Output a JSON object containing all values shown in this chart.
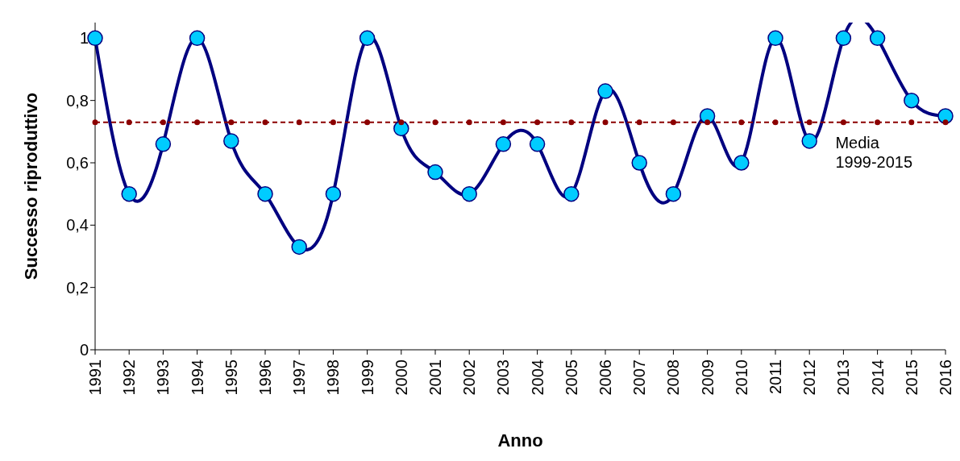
{
  "chart_data": {
    "type": "line",
    "xlabel": "Anno",
    "ylabel": "Successo riproduttivo",
    "categories": [
      "1991",
      "1992",
      "1993",
      "1994",
      "1995",
      "1996",
      "1997",
      "1998",
      "1999",
      "2000",
      "2001",
      "2002",
      "2003",
      "2004",
      "2005",
      "2006",
      "2007",
      "2008",
      "2009",
      "2010",
      "2011",
      "2012",
      "2013",
      "2014",
      "2015",
      "2016"
    ],
    "series": [
      {
        "color": "#000080",
        "marker": "circle",
        "line_style": "solid",
        "values": [
          1,
          0.5,
          0.66,
          1,
          0.67,
          0.5,
          0.33,
          0.5,
          1,
          0.71,
          0.57,
          0.5,
          0.66,
          0.66,
          0.5,
          0.83,
          0.6,
          0.5,
          0.75,
          0.6,
          1,
          0.67,
          1,
          1,
          0.8,
          0.75
        ]
      },
      {
        "name": "Media\n1999-2015",
        "color": "#8b0000",
        "marker": "circle",
        "line_style": "dashed",
        "values": [
          0.73,
          0.73,
          0.73,
          0.73,
          0.73,
          0.73,
          0.73,
          0.73,
          0.73,
          0.73,
          0.73,
          0.73,
          0.73,
          0.73,
          0.73,
          0.73,
          0.73,
          0.73,
          0.73,
          0.73,
          0.73,
          0.73,
          0.73,
          0.73,
          0.73,
          0.73
        ]
      }
    ],
    "ylim": [
      0,
      1.05
    ],
    "yticks": [
      0,
      {
        "value": 0.2,
        "label": "0,2"
      },
      {
        "value": 0.4,
        "label": "0,4"
      },
      {
        "value": 0.6,
        "label": "0,6"
      },
      {
        "value": 0.8,
        "label": "0,8"
      },
      1
    ],
    "grid": false,
    "legend": false
  }
}
